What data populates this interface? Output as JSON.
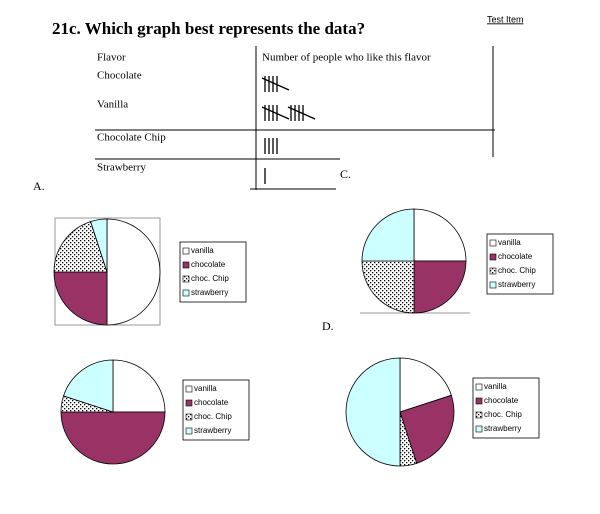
{
  "header": {
    "title": "21c. Which graph best represents the data?",
    "tag": "Test Item"
  },
  "table": {
    "columns": [
      "Flavor",
      "Number of people who like this flavor"
    ],
    "rows": [
      [
        "Chocolate",
        5
      ],
      [
        "Vanilla",
        10
      ],
      [
        "Chocolate Chip",
        4
      ],
      [
        "Strawberry",
        1
      ]
    ]
  },
  "options": [
    {
      "label": "A.",
      "legend": [
        "vanilla",
        "chocolate",
        "choc. Chip",
        "strawberry"
      ],
      "values": [
        50,
        25,
        20,
        5
      ]
    },
    {
      "label": "C.",
      "legend": [
        "vanilla",
        "chocolate",
        "choc. Chip",
        "strawberry"
      ],
      "values": [
        25,
        25,
        25,
        25
      ]
    },
    {
      "legend": [
        "vanilla",
        "chocolate",
        "choc. Chip",
        "strawberry"
      ],
      "values": [
        25,
        50,
        5,
        20
      ]
    },
    {
      "label": "D.",
      "legend": [
        "vanilla",
        "chocolate",
        "choc. Chip",
        "strawberry"
      ],
      "values": [
        20,
        25,
        5,
        50
      ]
    }
  ]
}
